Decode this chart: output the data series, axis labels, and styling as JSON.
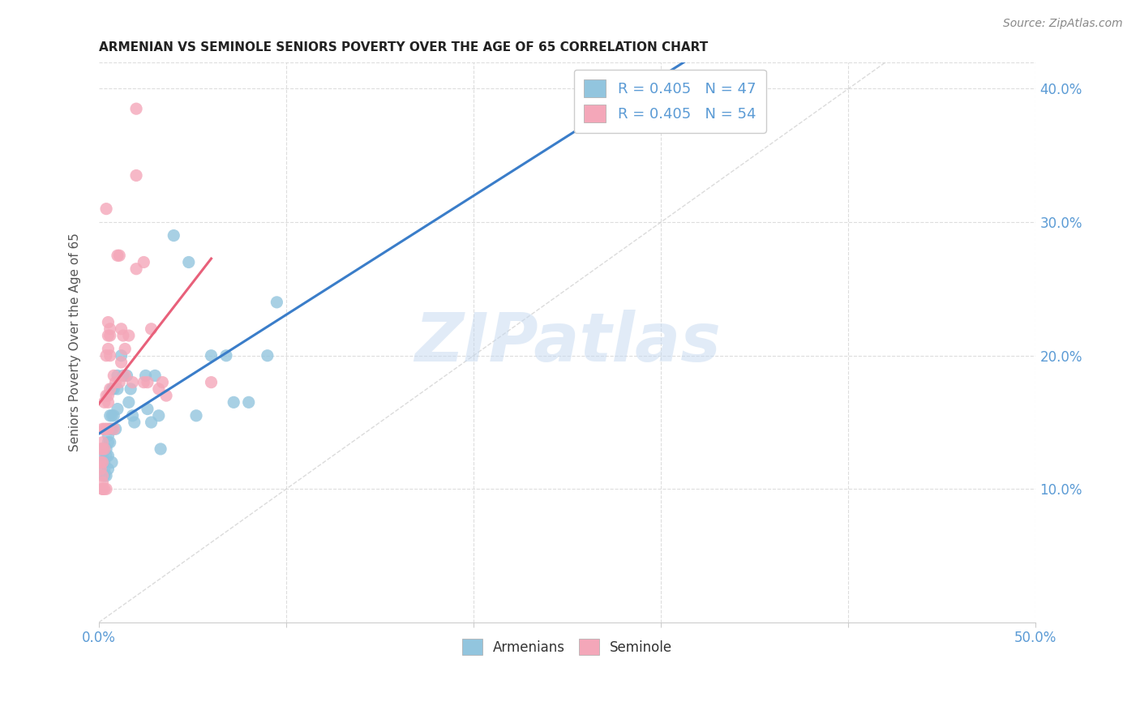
{
  "title": "ARMENIAN VS SEMINOLE SENIORS POVERTY OVER THE AGE OF 65 CORRELATION CHART",
  "source": "Source: ZipAtlas.com",
  "ylabel": "Seniors Poverty Over the Age of 65",
  "xlim": [
    0.0,
    0.5
  ],
  "ylim": [
    0.0,
    0.42
  ],
  "xtick_positions": [
    0.0,
    0.5
  ],
  "xticklabels": [
    "0.0%",
    "50.0%"
  ],
  "ytick_positions": [
    0.1,
    0.2,
    0.3,
    0.4
  ],
  "yticklabels": [
    "10.0%",
    "20.0%",
    "30.0%",
    "40.0%"
  ],
  "legend_armenian": "R = 0.405   N = 47",
  "legend_seminole": "R = 0.405   N = 54",
  "color_armenian": "#92c5de",
  "color_seminole": "#f4a7b9",
  "color_armenian_line": "#3a7dc9",
  "color_seminole_line": "#e8607a",
  "color_diagonal": "#cccccc",
  "color_tick": "#5b9bd5",
  "color_grid": "#dddddd",
  "watermark": "ZIPatlas",
  "background_color": "#ffffff",
  "armenian_x": [
    0.002,
    0.002,
    0.003,
    0.003,
    0.003,
    0.004,
    0.004,
    0.004,
    0.005,
    0.005,
    0.005,
    0.005,
    0.006,
    0.006,
    0.006,
    0.007,
    0.007,
    0.007,
    0.007,
    0.008,
    0.008,
    0.009,
    0.01,
    0.01,
    0.01,
    0.012,
    0.013,
    0.015,
    0.016,
    0.017,
    0.018,
    0.019,
    0.025,
    0.026,
    0.028,
    0.03,
    0.032,
    0.033,
    0.04,
    0.048,
    0.052,
    0.06,
    0.068,
    0.072,
    0.08,
    0.09,
    0.095
  ],
  "armenian_y": [
    0.13,
    0.125,
    0.12,
    0.115,
    0.11,
    0.13,
    0.125,
    0.11,
    0.14,
    0.135,
    0.125,
    0.115,
    0.155,
    0.145,
    0.135,
    0.175,
    0.155,
    0.145,
    0.12,
    0.175,
    0.155,
    0.145,
    0.185,
    0.175,
    0.16,
    0.2,
    0.185,
    0.185,
    0.165,
    0.175,
    0.155,
    0.15,
    0.185,
    0.16,
    0.15,
    0.185,
    0.155,
    0.13,
    0.29,
    0.27,
    0.155,
    0.2,
    0.2,
    0.165,
    0.165,
    0.2,
    0.24
  ],
  "seminole_x": [
    0.001,
    0.001,
    0.001,
    0.002,
    0.002,
    0.002,
    0.002,
    0.002,
    0.002,
    0.002,
    0.002,
    0.003,
    0.003,
    0.003,
    0.003,
    0.004,
    0.004,
    0.004,
    0.004,
    0.004,
    0.005,
    0.005,
    0.005,
    0.005,
    0.005,
    0.005,
    0.006,
    0.006,
    0.006,
    0.006,
    0.008,
    0.008,
    0.009,
    0.01,
    0.011,
    0.011,
    0.012,
    0.012,
    0.013,
    0.014,
    0.014,
    0.016,
    0.018,
    0.02,
    0.02,
    0.02,
    0.024,
    0.024,
    0.026,
    0.028,
    0.032,
    0.034,
    0.036,
    0.06
  ],
  "seminole_y": [
    0.13,
    0.12,
    0.115,
    0.145,
    0.135,
    0.13,
    0.12,
    0.11,
    0.105,
    0.1,
    0.1,
    0.165,
    0.145,
    0.13,
    0.1,
    0.31,
    0.2,
    0.17,
    0.145,
    0.1,
    0.225,
    0.215,
    0.205,
    0.17,
    0.165,
    0.145,
    0.22,
    0.215,
    0.2,
    0.175,
    0.185,
    0.145,
    0.18,
    0.275,
    0.275,
    0.18,
    0.22,
    0.195,
    0.215,
    0.205,
    0.185,
    0.215,
    0.18,
    0.385,
    0.335,
    0.265,
    0.27,
    0.18,
    0.18,
    0.22,
    0.175,
    0.18,
    0.17,
    0.18
  ],
  "armenian_trend": [
    0.128,
    0.228
  ],
  "seminole_trend_x": [
    0.001,
    0.06
  ],
  "seminole_trend_y": [
    0.13,
    0.27
  ]
}
